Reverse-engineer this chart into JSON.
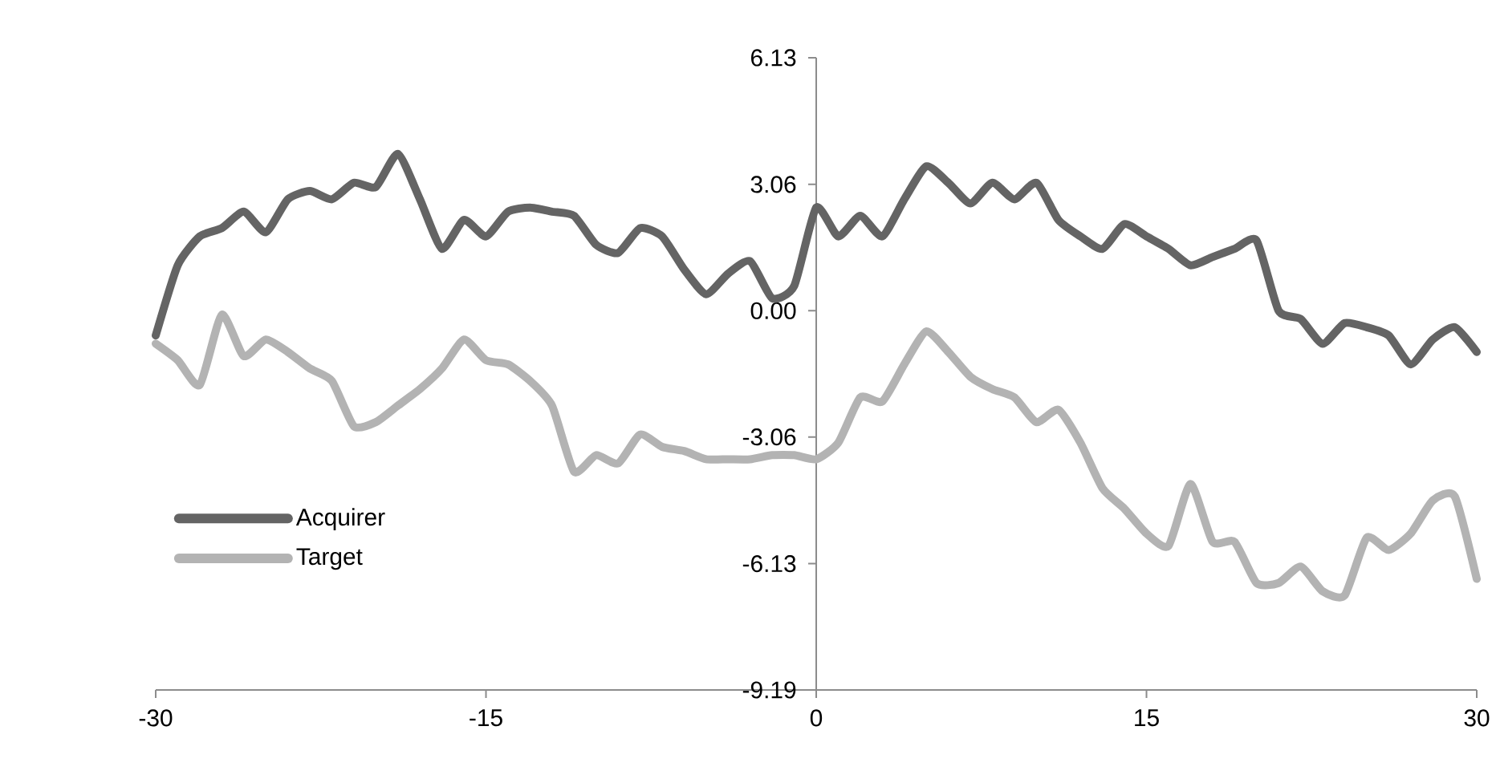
{
  "chart_data": {
    "type": "line",
    "x": [
      -30,
      -29,
      -28,
      -27,
      -26,
      -25,
      -24,
      -23,
      -22,
      -21,
      -20,
      -19,
      -18,
      -17,
      -16,
      -15,
      -14,
      -13,
      -12,
      -11,
      -10,
      -9,
      -8,
      -7,
      -6,
      -5,
      -4,
      -3,
      -2,
      -1,
      0,
      1,
      2,
      3,
      4,
      5,
      6,
      7,
      8,
      9,
      10,
      11,
      12,
      13,
      14,
      15,
      16,
      17,
      18,
      19,
      20,
      21,
      22,
      23,
      24,
      25,
      26,
      27,
      28,
      29,
      30
    ],
    "series": [
      {
        "name": "Acquirer",
        "color": "#646464",
        "values": [
          -0.6,
          1.1,
          1.8,
          2.0,
          2.4,
          1.9,
          2.7,
          2.9,
          2.7,
          3.1,
          3.0,
          3.8,
          2.7,
          1.5,
          2.2,
          1.8,
          2.4,
          2.5,
          2.4,
          2.3,
          1.6,
          1.4,
          2.0,
          1.8,
          1.0,
          0.4,
          0.9,
          1.2,
          0.3,
          0.6,
          2.5,
          1.8,
          2.3,
          1.8,
          2.7,
          3.5,
          3.1,
          2.6,
          3.1,
          2.7,
          3.1,
          2.2,
          1.8,
          1.5,
          2.1,
          1.8,
          1.5,
          1.1,
          1.3,
          1.5,
          1.7,
          0.0,
          -0.2,
          -0.8,
          -0.3,
          -0.4,
          -0.6,
          -1.3,
          -0.7,
          -0.4,
          -1.0
        ]
      },
      {
        "name": "Target",
        "color": "#b3b3b3",
        "values": [
          -0.8,
          -1.2,
          -1.8,
          -0.1,
          -1.1,
          -0.7,
          -1.0,
          -1.4,
          -1.7,
          -2.8,
          -2.7,
          -2.3,
          -1.9,
          -1.4,
          -0.7,
          -1.2,
          -1.3,
          -1.7,
          -2.3,
          -3.9,
          -3.5,
          -3.7,
          -3.0,
          -3.3,
          -3.4,
          -3.6,
          -3.6,
          -3.6,
          -3.5,
          -3.5,
          -3.6,
          -3.2,
          -2.1,
          -2.2,
          -1.3,
          -0.5,
          -1.0,
          -1.6,
          -1.9,
          -2.1,
          -2.7,
          -2.4,
          -3.2,
          -4.3,
          -4.8,
          -5.4,
          -5.7,
          -4.2,
          -5.6,
          -5.6,
          -6.6,
          -6.6,
          -6.2,
          -6.8,
          -6.9,
          -5.5,
          -5.8,
          -5.4,
          -4.6,
          -4.5,
          -6.5
        ]
      }
    ],
    "xlim": [
      -30,
      30
    ],
    "ylim": [
      -9.19,
      6.13
    ],
    "xticks": [
      -30,
      -15,
      0,
      15,
      30
    ],
    "yticks": [
      -9.19,
      -6.13,
      -3.06,
      {
        "value": 0,
        "label": "0.00"
      },
      3.06,
      6.13
    ],
    "legend": "left"
  }
}
